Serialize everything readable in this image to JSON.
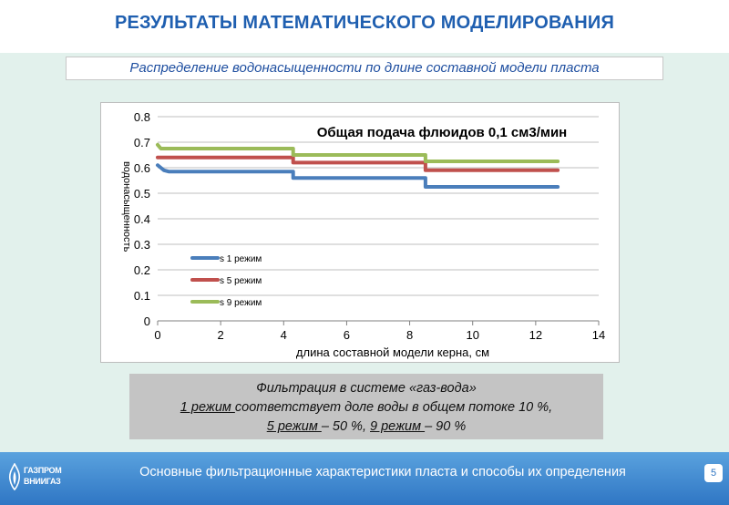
{
  "header": {
    "title": "РЕЗУЛЬТАТЫ МАТЕМАТИЧЕСКОГО МОДЕЛИРОВАНИЯ"
  },
  "subtitle": "Распределение водонасыщенности по длине составной модели пласта",
  "chart_data": {
    "type": "line",
    "title": "Общая подача флюидов 0,1 см3/мин",
    "xlabel": "длина составной модели керна, см",
    "ylabel": "водонасыщенность",
    "xlim": [
      0,
      14
    ],
    "ylim": [
      0,
      0.8
    ],
    "x_ticks": [
      "0",
      "2",
      "4",
      "6",
      "8",
      "10",
      "12",
      "14"
    ],
    "y_ticks": [
      "0",
      "0.1",
      "0.2",
      "0.3",
      "0.4",
      "0.5",
      "0.6",
      "0.7",
      "0.8"
    ],
    "grid": true,
    "legend_position": "left",
    "series": [
      {
        "name": "s 1 режим",
        "color": "#4a7ebb",
        "x": [
          0,
          0.1,
          0.2,
          0.35,
          4.3,
          4.3,
          8.5,
          8.5,
          12.7
        ],
        "y": [
          0.61,
          0.6,
          0.59,
          0.585,
          0.585,
          0.56,
          0.56,
          0.525,
          0.525
        ]
      },
      {
        "name": "s 5 режим",
        "color": "#c0504d",
        "x": [
          0,
          4.3,
          4.3,
          8.5,
          8.5,
          12.7
        ],
        "y": [
          0.64,
          0.64,
          0.62,
          0.62,
          0.59,
          0.59
        ]
      },
      {
        "name": "s 9 режим",
        "color": "#9bbb59",
        "x": [
          0,
          0.1,
          4.3,
          4.3,
          8.5,
          8.5,
          12.7
        ],
        "y": [
          0.69,
          0.675,
          0.675,
          0.65,
          0.65,
          0.625,
          0.625
        ]
      }
    ]
  },
  "note": {
    "line1": "Фильтрация в системе «газ-вода»",
    "line2_mode": "1 режим ",
    "line2_rest": "соответствует доле воды в общем потоке 10 %,",
    "line3_mode_a": "5 режим ",
    "line3_val_a": "– 50 %,  ",
    "line3_mode_b": "9 режим ",
    "line3_val_b": "– 90 %"
  },
  "footer": {
    "text": "Основные фильтрационные характеристики пласта и способы их определения",
    "slide_number": "5",
    "logo_line1": "ГАЗПРОМ",
    "logo_line2": "ВНИИГАЗ"
  }
}
